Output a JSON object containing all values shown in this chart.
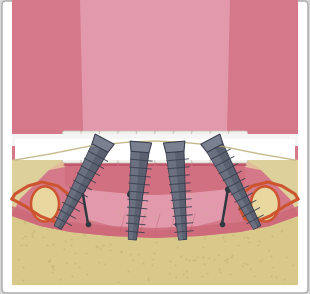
{
  "fig_bg": "#d8d8d8",
  "white_bg": "#ffffff",
  "palate_base": "#d4788a",
  "palate_light": "#e8a0aa",
  "palate_top": "#cc6878",
  "palate_very_light": "#eebbcc",
  "gum_dark": "#c05068",
  "gum_med": "#d07080",
  "gum_light": "#e09098",
  "tooth_white": "#f2f0ea",
  "tooth_cream": "#e8e4dc",
  "tooth_shadow": "#c8c4bc",
  "bone_main": "#d8c88a",
  "bone_light": "#e8d8a0",
  "bone_sandy": "#ddd09a",
  "bone_dark_edge": "#b8a870",
  "bone_cortex": "#c8b878",
  "nerve_orange": "#cc5530",
  "nerve_line": "#d06040",
  "implant_body": "#5a6070",
  "implant_light": "#7a8090",
  "implant_dark": "#3a4050",
  "implant_tip": "#4a5060",
  "white_gap": "#f5f5f5",
  "connector_dark": "#303840"
}
